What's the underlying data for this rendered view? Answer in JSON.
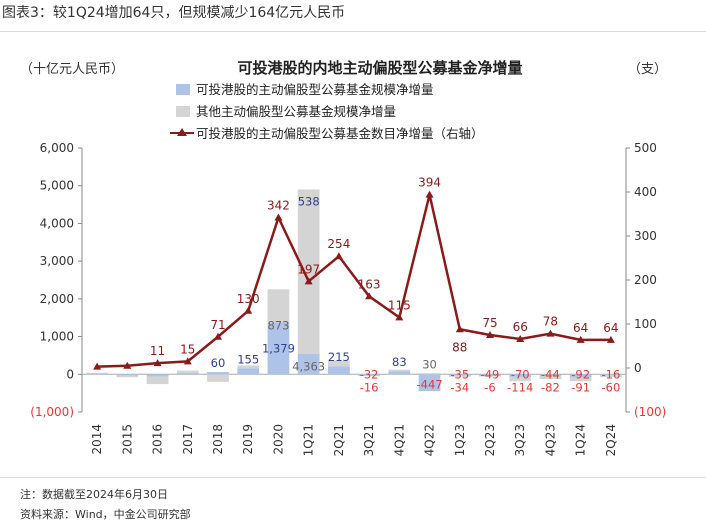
{
  "caption": "图表3：较1Q24增加64只，但规模减少164亿元人民币",
  "chart_data": {
    "type": "bar+line",
    "title": "可投港股的内地主动偏股型公募基金净增量",
    "ylabel_left": "（十亿元人民币）",
    "ylabel_right": "（支）",
    "categories": [
      "2014",
      "2015",
      "2016",
      "2017",
      "2018",
      "2019",
      "2020",
      "1Q21",
      "2Q21",
      "3Q21",
      "4Q21",
      "4Q22",
      "1Q23",
      "2Q23",
      "3Q23",
      "4Q23",
      "1Q24",
      "2Q24"
    ],
    "y_left": {
      "min": -1000,
      "max": 6000,
      "ticks": [
        -1000,
        0,
        1000,
        2000,
        3000,
        4000,
        5000,
        6000
      ],
      "tick_labels": [
        "(1,000)",
        "0",
        "1,000",
        "2,000",
        "3,000",
        "4,000",
        "5,000",
        "6,000"
      ]
    },
    "y_right": {
      "min": -100,
      "max": 500,
      "ticks": [
        -100,
        0,
        100,
        200,
        300,
        400,
        500
      ],
      "tick_labels": [
        "(100)",
        "0",
        "100",
        "200",
        "300",
        "400",
        "500"
      ]
    },
    "series": [
      {
        "name": "可投港股的主动偏股型公募基金规模净增量",
        "kind": "bar",
        "color": "#aec3e8",
        "values": [
          20,
          -30,
          -60,
          40,
          60,
          155,
          1379,
          538,
          215,
          -32,
          83,
          -447,
          -35,
          -49,
          -70,
          -44,
          -92,
          -16
        ],
        "labels": [
          "",
          "",
          "",
          "",
          "60",
          "155",
          "1,379",
          "538",
          "215",
          "-32",
          "83",
          "-447",
          "-35",
          "-49",
          "-70",
          "-44",
          "-92",
          "-16"
        ],
        "label_colors": [
          "",
          "",
          "",
          "",
          "#2f3f8f",
          "#2f3f8f",
          "#2f3f8f",
          "#2f3f8f",
          "#2f3f8f",
          "#e53935",
          "#2f3f8f",
          "#e53935",
          "#e53935",
          "#e53935",
          "#e53935",
          "#e53935",
          "#e53935",
          "#e53935"
        ]
      },
      {
        "name": "其他主动偏股型公募基金规模净增量",
        "kind": "bar",
        "color": "#d4d4d4",
        "values": [
          20,
          -50,
          -200,
          60,
          -200,
          80,
          873,
          4363,
          150,
          -16,
          40,
          30,
          -34,
          -6,
          -114,
          -82,
          -91,
          -60
        ],
        "labels": [
          "",
          "",
          "",
          "",
          "",
          "",
          "873",
          "4,363",
          "",
          "-16",
          "",
          "30",
          "-34",
          "-6",
          "-114",
          "-82",
          "-91",
          "-60"
        ],
        "label_colors": [
          "",
          "",
          "",
          "",
          "",
          "",
          "#666666",
          "#666666",
          "",
          "#e53935",
          "",
          "#666666",
          "#e53935",
          "#e53935",
          "#e53935",
          "#e53935",
          "#e53935",
          "#e53935"
        ]
      },
      {
        "name": "可投港股的主动偏股型公募基金数目净增量（右轴）",
        "kind": "line",
        "axis": "right",
        "color": "#8b1a1a",
        "values": [
          3,
          5,
          11,
          15,
          71,
          130,
          342,
          197,
          254,
          163,
          115,
          394,
          88,
          75,
          66,
          78,
          64,
          64
        ],
        "labels": [
          "",
          "",
          "11",
          "15",
          "71",
          "130",
          "342",
          "197",
          "254",
          "163",
          "115",
          "394",
          "88",
          "75",
          "66",
          "78",
          "64",
          "64"
        ]
      }
    ]
  },
  "footnotes": {
    "note": "注：数据截至2024年6月30日",
    "source": "资料来源：Wind，中金公司研究部"
  }
}
